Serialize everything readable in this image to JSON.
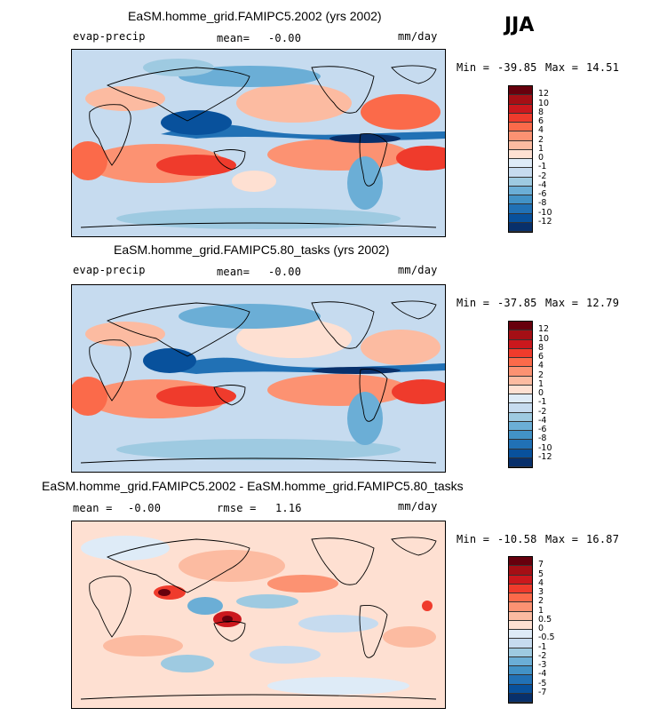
{
  "season_label": "JJA",
  "chart_data": [
    {
      "type": "heatmap",
      "title": "EaSM.homme_grid.FAMIPC5.2002 (yrs 2002)",
      "variable": "evap-precip",
      "mean_label": "mean=",
      "mean": "-0.00",
      "units": "mm/day",
      "min_label": "Min =",
      "min": "-39.85",
      "max_label": "Max =",
      "max": "14.51",
      "levels": [
        "12",
        "10",
        "8",
        "6",
        "4",
        "2",
        "1",
        "0",
        "-1",
        "-2",
        "-4",
        "-6",
        "-8",
        "-10",
        "-12"
      ],
      "colors": [
        "#67000d",
        "#a50f15",
        "#cb181d",
        "#ef3b2c",
        "#fb6a4a",
        "#fc9272",
        "#fcbba1",
        "#fee0d2",
        "#deebf7",
        "#c6dbef",
        "#9ecae1",
        "#6baed6",
        "#4292c6",
        "#2171b5",
        "#08519c",
        "#08306b"
      ]
    },
    {
      "type": "heatmap",
      "title": "EaSM.homme_grid.FAMIPC5.80_tasks (yrs 2002)",
      "variable": "evap-precip",
      "mean_label": "mean=",
      "mean": "-0.00",
      "units": "mm/day",
      "min_label": "Min =",
      "min": "-37.85",
      "max_label": "Max =",
      "max": "12.79",
      "levels": [
        "12",
        "10",
        "8",
        "6",
        "4",
        "2",
        "1",
        "0",
        "-1",
        "-2",
        "-4",
        "-6",
        "-8",
        "-10",
        "-12"
      ],
      "colors": [
        "#67000d",
        "#a50f15",
        "#cb181d",
        "#ef3b2c",
        "#fb6a4a",
        "#fc9272",
        "#fcbba1",
        "#fee0d2",
        "#deebf7",
        "#c6dbef",
        "#9ecae1",
        "#6baed6",
        "#4292c6",
        "#2171b5",
        "#08519c",
        "#08306b"
      ]
    },
    {
      "type": "heatmap",
      "title": "EaSM.homme_grid.FAMIPC5.2002 - EaSM.homme_grid.FAMIPC5.80_tasks",
      "mean_label": "mean =",
      "mean": "-0.00",
      "rmse_label": "rmse =",
      "rmse": "1.16",
      "units": "mm/day",
      "min_label": "Min =",
      "min": "-10.58",
      "max_label": "Max =",
      "max": "16.87",
      "levels": [
        "7",
        "5",
        "4",
        "3",
        "2",
        "1",
        "0.5",
        "0",
        "-0.5",
        "-1",
        "-2",
        "-3",
        "-4",
        "-5",
        "-7"
      ],
      "colors": [
        "#67000d",
        "#a50f15",
        "#cb181d",
        "#ef3b2c",
        "#fb6a4a",
        "#fc9272",
        "#fcbba1",
        "#fee0d2",
        "#deebf7",
        "#c6dbef",
        "#9ecae1",
        "#6baed6",
        "#4292c6",
        "#2171b5",
        "#08519c",
        "#08306b"
      ]
    }
  ]
}
